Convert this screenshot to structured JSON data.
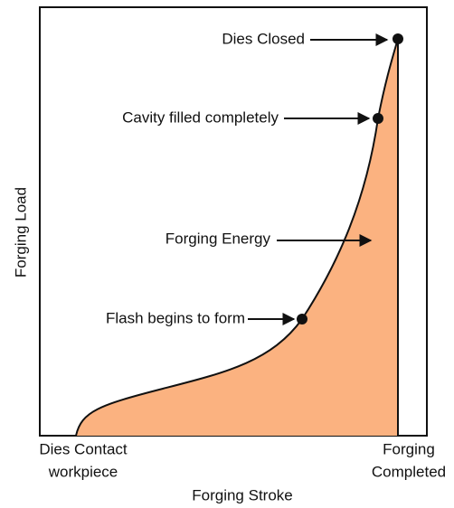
{
  "y_axis_label": "Forging Load",
  "x_axis_label": "Forging Stroke",
  "x_start_label": [
    "Dies Contact",
    "workpiece"
  ],
  "x_end_label": [
    "Forging",
    "Completed"
  ],
  "annotations": [
    "Dies Closed",
    "Cavity filled completely",
    "Forging Energy",
    "Flash begins to form"
  ]
}
